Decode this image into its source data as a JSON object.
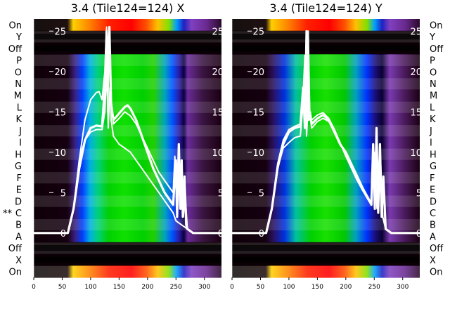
{
  "chart_data": [
    {
      "type": "heatmap",
      "title": "3.4 (Tile124=124) X",
      "row_labels": [
        "On",
        "Y",
        "Off",
        "P",
        "O",
        "N",
        "M",
        "L",
        "K",
        "J",
        "I",
        "H",
        "G",
        "F",
        "E",
        "D",
        "C",
        "B",
        "A",
        "Off",
        "X",
        "On"
      ],
      "marked_row": "C",
      "marker": "**",
      "x_ticks": [
        0,
        50,
        100,
        150,
        200,
        250,
        300
      ],
      "xlim": [
        0,
        330
      ],
      "overlay_yticks": [
        0,
        5,
        10,
        15,
        20,
        25
      ],
      "overlay_ylim": [
        -5.5,
        26.5
      ],
      "series": [
        {
          "name": "",
          "x": [
            0,
            60,
            70,
            80,
            90,
            100,
            110,
            120,
            125,
            128,
            130,
            133,
            136,
            140,
            150,
            160,
            165,
            170,
            180,
            190,
            200,
            210,
            220,
            230,
            240,
            245,
            250,
            252,
            255,
            258,
            260,
            262,
            265,
            268,
            270,
            280,
            330
          ],
          "y": [
            0,
            0,
            3,
            8,
            11.5,
            13,
            13.3,
            13.2,
            18,
            25,
            20,
            25.5,
            16,
            14,
            14.8,
            15.6,
            15.8,
            15.4,
            14,
            12,
            10,
            8,
            6.5,
            5,
            4,
            3.5,
            9,
            2,
            11,
            3,
            9,
            2,
            7,
            1,
            0.5,
            0,
            0
          ]
        },
        {
          "name": "",
          "x": [
            0,
            60,
            70,
            80,
            90,
            100,
            110,
            115,
            120,
            125,
            128,
            130,
            133,
            136,
            140,
            150,
            160,
            170,
            180,
            190,
            200,
            210,
            220,
            230,
            240,
            245,
            250,
            260,
            270,
            280,
            330
          ],
          "y": [
            0,
            0,
            3,
            9,
            14,
            16.5,
            17.4,
            17.5,
            16.5,
            20,
            25.5,
            15,
            24.5,
            14,
            12,
            11,
            10.5,
            10,
            9,
            8,
            7,
            6,
            5,
            4,
            3,
            2.5,
            1.5,
            1,
            0.5,
            0,
            0
          ]
        },
        {
          "name": "",
          "x": [
            0,
            60,
            70,
            80,
            90,
            100,
            110,
            120,
            125,
            128,
            131,
            134,
            140,
            150,
            160,
            170,
            180,
            190,
            200,
            210,
            220,
            230,
            240,
            245,
            248,
            251,
            254,
            257,
            260,
            263,
            266,
            270,
            280,
            330
          ],
          "y": [
            0,
            0,
            3,
            9,
            11.5,
            12.5,
            12.8,
            12.8,
            15,
            20,
            13,
            18,
            13.5,
            14.2,
            15,
            14.5,
            13.5,
            12,
            10.5,
            9,
            7.5,
            6.5,
            5.5,
            5,
            9.5,
            4,
            9,
            3,
            8,
            2,
            5,
            0.5,
            0,
            0
          ]
        }
      ]
    },
    {
      "type": "heatmap",
      "title": "3.4 (Tile124=124) Y",
      "row_labels": [
        "On",
        "Y",
        "Off",
        "P",
        "O",
        "N",
        "M",
        "L",
        "K",
        "J",
        "I",
        "H",
        "G",
        "F",
        "E",
        "D",
        "C",
        "B",
        "A",
        "Off",
        "X",
        "On"
      ],
      "x_ticks": [
        0,
        50,
        100,
        150,
        200,
        250,
        300
      ],
      "xlim": [
        0,
        330
      ],
      "overlay_yticks": [
        0,
        5,
        10,
        15,
        20,
        25
      ],
      "overlay_ylim": [
        -5.5,
        26.5
      ],
      "series": [
        {
          "name": "",
          "x": [
            0,
            60,
            70,
            80,
            90,
            100,
            110,
            120,
            125,
            128,
            131,
            134,
            137,
            140,
            150,
            160,
            170,
            180,
            190,
            200,
            210,
            220,
            230,
            240,
            245,
            248,
            251,
            254,
            257,
            260,
            263,
            266,
            270,
            280,
            330
          ],
          "y": [
            0,
            0,
            3,
            8,
            11,
            12.5,
            13,
            13.2,
            18,
            13,
            25,
            14,
            15,
            13.5,
            14.2,
            14.6,
            14,
            12.5,
            11,
            10,
            8.5,
            7,
            5.5,
            4.2,
            3.5,
            11,
            3,
            13,
            2.5,
            11,
            2,
            7,
            0.5,
            0,
            0
          ]
        },
        {
          "name": "",
          "x": [
            0,
            60,
            70,
            80,
            90,
            100,
            110,
            120,
            125,
            128,
            131,
            134,
            140,
            150,
            160,
            170,
            180,
            190,
            200,
            210,
            220,
            230,
            240,
            245,
            250,
            255,
            260,
            265,
            270,
            280,
            330
          ],
          "y": [
            0,
            0,
            3,
            8,
            10.5,
            11.2,
            11.8,
            12,
            16,
            20,
            12,
            16,
            13,
            13.8,
            14.2,
            13.8,
            12.8,
            11.2,
            9.5,
            8,
            6.5,
            5.2,
            4,
            3.5,
            9,
            3,
            8,
            2,
            0.5,
            0,
            0
          ]
        },
        {
          "name": "",
          "x": [
            0,
            60,
            70,
            80,
            90,
            100,
            110,
            120,
            125,
            128,
            131,
            134,
            137,
            140,
            150,
            160,
            170,
            180,
            190,
            200,
            210,
            220,
            230,
            240,
            245,
            250,
            255,
            260,
            265,
            270,
            280,
            330
          ],
          "y": [
            0,
            0,
            3,
            8.5,
            11.5,
            12.8,
            13.2,
            13.5,
            17,
            22,
            13,
            25,
            14,
            14,
            14.6,
            14.9,
            14.2,
            12.8,
            11,
            9.8,
            8.2,
            6.8,
            5.3,
            4.2,
            3.5,
            10,
            3,
            11,
            2,
            0.5,
            0,
            0
          ]
        }
      ]
    }
  ]
}
